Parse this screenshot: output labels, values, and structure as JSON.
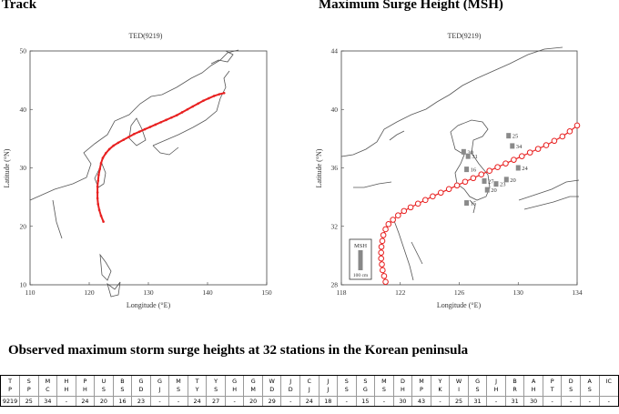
{
  "track_panel": {
    "section_title": "Track",
    "map_title": "TED(9219)",
    "x_axis_label": "Longitude (°E)",
    "y_axis_label": "Latitude (°N)",
    "x_ticks": [
      "110",
      "120",
      "130",
      "140",
      "150"
    ],
    "y_ticks": [
      "10",
      "20",
      "30",
      "40",
      "50"
    ],
    "x_range": [
      110,
      150
    ],
    "y_range": [
      10,
      50
    ],
    "track_color": "#e82020",
    "track": [
      [
        122.4,
        20.8
      ],
      [
        122.0,
        21.8
      ],
      [
        121.7,
        22.8
      ],
      [
        121.5,
        23.8
      ],
      [
        121.4,
        24.8
      ],
      [
        121.4,
        25.8
      ],
      [
        121.4,
        26.8
      ],
      [
        121.5,
        27.8
      ],
      [
        121.6,
        28.8
      ],
      [
        121.8,
        29.8
      ],
      [
        122.0,
        30.8
      ],
      [
        122.3,
        31.7
      ],
      [
        122.8,
        32.5
      ],
      [
        123.4,
        33.2
      ],
      [
        124.1,
        33.8
      ],
      [
        124.9,
        34.3
      ],
      [
        125.8,
        34.8
      ],
      [
        126.7,
        35.3
      ],
      [
        127.6,
        35.8
      ],
      [
        128.5,
        36.2
      ],
      [
        129.4,
        36.6
      ],
      [
        130.3,
        37.0
      ],
      [
        131.2,
        37.4
      ],
      [
        132.1,
        37.8
      ],
      [
        133.0,
        38.2
      ],
      [
        133.9,
        38.6
      ],
      [
        134.8,
        39.0
      ],
      [
        135.7,
        39.5
      ],
      [
        136.6,
        40.0
      ],
      [
        137.5,
        40.5
      ],
      [
        138.4,
        41.0
      ],
      [
        139.3,
        41.5
      ],
      [
        140.2,
        41.9
      ],
      [
        141.1,
        42.3
      ],
      [
        142.0,
        42.6
      ],
      [
        142.8,
        42.8
      ]
    ]
  },
  "msh_panel": {
    "section_title": "Maximum Surge Height (MSH)",
    "map_title": "TED(9219)",
    "x_axis_label": "Longitude (°E)",
    "y_axis_label": "Latitude (°N)",
    "x_ticks": [
      "118",
      "122",
      "126",
      "130",
      "134"
    ],
    "y_ticks": [
      "28",
      "32",
      "36",
      "40",
      "44"
    ],
    "x_range": [
      118,
      134
    ],
    "y_range": [
      28,
      44
    ],
    "track_color": "#e82020",
    "track": [
      [
        121.0,
        28.2
      ],
      [
        120.9,
        28.6
      ],
      [
        120.8,
        29.0
      ],
      [
        120.75,
        29.4
      ],
      [
        120.7,
        29.8
      ],
      [
        120.7,
        30.2
      ],
      [
        120.72,
        30.6
      ],
      [
        120.78,
        31.0
      ],
      [
        120.85,
        31.4
      ],
      [
        121.0,
        31.8
      ],
      [
        121.2,
        32.15
      ],
      [
        121.5,
        32.45
      ],
      [
        121.85,
        32.75
      ],
      [
        122.25,
        33.05
      ],
      [
        122.7,
        33.3
      ],
      [
        123.2,
        33.55
      ],
      [
        123.7,
        33.8
      ],
      [
        124.2,
        34.05
      ],
      [
        124.75,
        34.3
      ],
      [
        125.3,
        34.55
      ],
      [
        125.85,
        34.8
      ],
      [
        126.4,
        35.05
      ],
      [
        126.95,
        35.3
      ],
      [
        127.5,
        35.55
      ],
      [
        128.05,
        35.8
      ],
      [
        128.6,
        36.05
      ],
      [
        129.15,
        36.3
      ],
      [
        129.7,
        36.55
      ],
      [
        130.25,
        36.8
      ],
      [
        130.8,
        37.05
      ],
      [
        131.35,
        37.3
      ],
      [
        131.9,
        37.55
      ],
      [
        132.45,
        37.85
      ],
      [
        133.0,
        38.15
      ],
      [
        133.5,
        38.5
      ],
      [
        134.0,
        38.9
      ]
    ],
    "stations": [
      {
        "label": "25",
        "lon": 129.35,
        "lat": 38.2
      },
      {
        "label": "34",
        "lon": 129.6,
        "lat": 37.5
      },
      {
        "label": "30",
        "lon": 126.3,
        "lat": 37.1
      },
      {
        "label": "31",
        "lon": 126.6,
        "lat": 36.8
      },
      {
        "label": "16",
        "lon": 126.5,
        "lat": 35.9
      },
      {
        "label": "24",
        "lon": 130.0,
        "lat": 36.0
      },
      {
        "label": "27",
        "lon": 127.7,
        "lat": 35.1
      },
      {
        "label": "20",
        "lon": 129.2,
        "lat": 35.2
      },
      {
        "label": "23",
        "lon": 128.5,
        "lat": 34.9
      },
      {
        "label": "20",
        "lon": 127.9,
        "lat": 34.5
      },
      {
        "label": "15",
        "lon": 126.5,
        "lat": 33.6
      }
    ],
    "legend": {
      "title": "MSH",
      "scale_label": "100 cm"
    }
  },
  "observed_table": {
    "title": "Observed maximum storm surge heights at 32 stations in the Korean peninsula",
    "headers": [
      [
        "T",
        "P"
      ],
      [
        "S",
        "P"
      ],
      [
        "M",
        "C"
      ],
      [
        "H",
        "H"
      ],
      [
        "P",
        "H"
      ],
      [
        "U",
        "S"
      ],
      [
        "B",
        "S"
      ],
      [
        "G",
        "D"
      ],
      [
        "G",
        "J"
      ],
      [
        "M",
        "S"
      ],
      [
        "T",
        "Y"
      ],
      [
        "Y",
        "S"
      ],
      [
        "G",
        "H"
      ],
      [
        "G",
        "M"
      ],
      [
        "W",
        "D"
      ],
      [
        "J",
        "D"
      ],
      [
        "C",
        "J"
      ],
      [
        "J",
        "J"
      ],
      [
        "S",
        "S"
      ],
      [
        "S",
        "G"
      ],
      [
        "M",
        "S"
      ],
      [
        "D",
        "H"
      ],
      [
        "M",
        "P"
      ],
      [
        "Y",
        "K"
      ],
      [
        "W",
        "I"
      ],
      [
        "G",
        "S"
      ],
      [
        "J",
        "H"
      ],
      [
        "B",
        "R"
      ],
      [
        "A",
        "H"
      ],
      [
        "P",
        "T"
      ],
      [
        "D",
        "S"
      ],
      [
        "A",
        "S"
      ],
      [
        "IC"
      ]
    ],
    "values": [
      "9219",
      "25",
      "34",
      "-",
      "24",
      "20",
      "16",
      "23",
      "-",
      "-",
      "24",
      "27",
      "-",
      "20",
      "29",
      "-",
      "24",
      "18",
      "-",
      "15",
      "-",
      "30",
      "43",
      "-",
      "25",
      "31",
      "-",
      "31",
      "30",
      "-",
      "-",
      "-",
      "-"
    ]
  }
}
